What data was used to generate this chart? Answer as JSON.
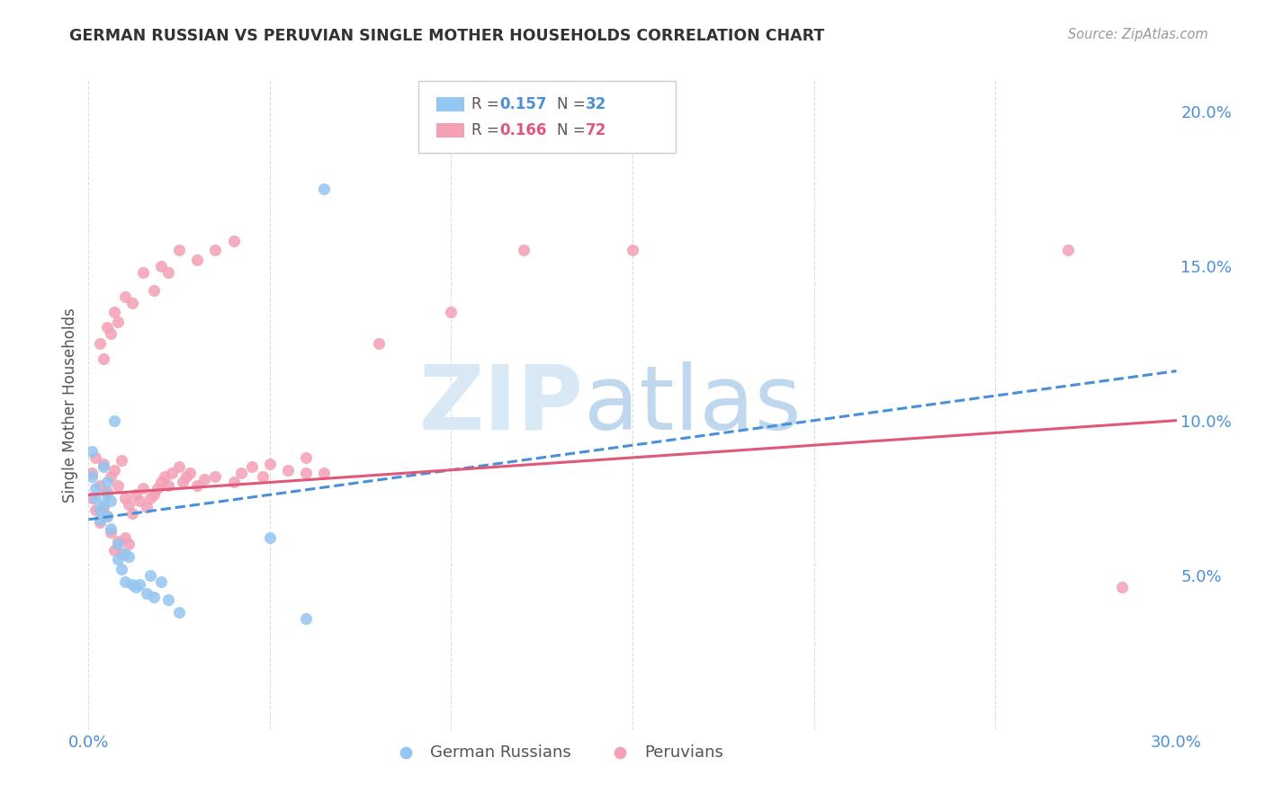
{
  "title": "GERMAN RUSSIAN VS PERUVIAN SINGLE MOTHER HOUSEHOLDS CORRELATION CHART",
  "source": "Source: ZipAtlas.com",
  "ylabel": "Single Mother Households",
  "xlim": [
    0.0,
    0.3
  ],
  "ylim": [
    0.0,
    0.21
  ],
  "color_blue": "#93C6F0",
  "color_pink": "#F4A0B5",
  "color_blue_text": "#4A90D9",
  "color_pink_text": "#E05878",
  "color_axis_text": "#4A90D9",
  "color_grid": "#DDDDDD",
  "gr_x": [
    0.001,
    0.001,
    0.002,
    0.002,
    0.003,
    0.003,
    0.004,
    0.004,
    0.005,
    0.005,
    0.005,
    0.006,
    0.006,
    0.007,
    0.008,
    0.008,
    0.009,
    0.01,
    0.01,
    0.011,
    0.012,
    0.013,
    0.014,
    0.016,
    0.017,
    0.018,
    0.02,
    0.022,
    0.025,
    0.05,
    0.06,
    0.065
  ],
  "gr_y": [
    0.082,
    0.09,
    0.075,
    0.078,
    0.071,
    0.068,
    0.085,
    0.073,
    0.076,
    0.069,
    0.08,
    0.065,
    0.074,
    0.1,
    0.055,
    0.06,
    0.052,
    0.048,
    0.057,
    0.056,
    0.047,
    0.046,
    0.047,
    0.044,
    0.05,
    0.043,
    0.048,
    0.042,
    0.038,
    0.062,
    0.036,
    0.175
  ],
  "pe_x": [
    0.001,
    0.001,
    0.002,
    0.002,
    0.003,
    0.003,
    0.004,
    0.004,
    0.005,
    0.005,
    0.006,
    0.006,
    0.007,
    0.007,
    0.008,
    0.008,
    0.009,
    0.009,
    0.01,
    0.01,
    0.011,
    0.011,
    0.012,
    0.013,
    0.014,
    0.015,
    0.016,
    0.017,
    0.018,
    0.019,
    0.02,
    0.021,
    0.022,
    0.023,
    0.025,
    0.026,
    0.027,
    0.028,
    0.03,
    0.032,
    0.035,
    0.04,
    0.042,
    0.045,
    0.048,
    0.05,
    0.055,
    0.06,
    0.06,
    0.065,
    0.003,
    0.004,
    0.005,
    0.006,
    0.007,
    0.008,
    0.01,
    0.012,
    0.015,
    0.018,
    0.02,
    0.022,
    0.025,
    0.03,
    0.035,
    0.04,
    0.12,
    0.15,
    0.27,
    0.285,
    0.1,
    0.08
  ],
  "pe_y": [
    0.075,
    0.083,
    0.071,
    0.088,
    0.067,
    0.079,
    0.072,
    0.086,
    0.069,
    0.077,
    0.064,
    0.082,
    0.058,
    0.084,
    0.061,
    0.079,
    0.057,
    0.087,
    0.062,
    0.075,
    0.06,
    0.073,
    0.07,
    0.076,
    0.074,
    0.078,
    0.072,
    0.075,
    0.076,
    0.078,
    0.08,
    0.082,
    0.079,
    0.083,
    0.085,
    0.08,
    0.082,
    0.083,
    0.079,
    0.081,
    0.082,
    0.08,
    0.083,
    0.085,
    0.082,
    0.086,
    0.084,
    0.083,
    0.088,
    0.083,
    0.125,
    0.12,
    0.13,
    0.128,
    0.135,
    0.132,
    0.14,
    0.138,
    0.148,
    0.142,
    0.15,
    0.148,
    0.155,
    0.152,
    0.155,
    0.158,
    0.155,
    0.155,
    0.155,
    0.046,
    0.135,
    0.125
  ],
  "gr_trend_x": [
    0.0,
    0.3
  ],
  "gr_trend_y": [
    0.068,
    0.116
  ],
  "pe_trend_x": [
    0.0,
    0.3
  ],
  "pe_trend_y": [
    0.076,
    0.1
  ]
}
